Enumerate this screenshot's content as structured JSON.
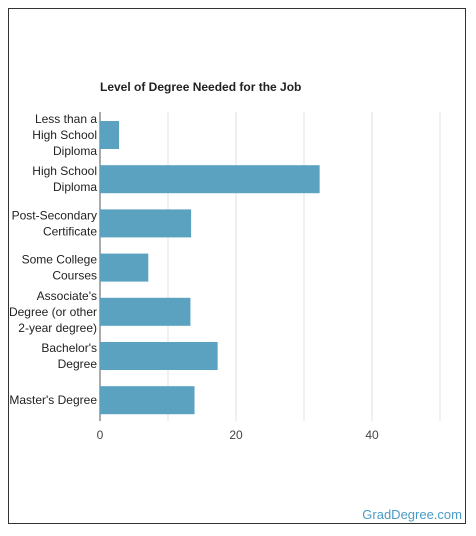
{
  "chart_data": {
    "type": "bar",
    "orientation": "horizontal",
    "title": "Level of Degree Needed for the Job",
    "categories": [
      [
        "Less than a",
        "High School",
        "Diploma"
      ],
      [
        "High School",
        "Diploma"
      ],
      [
        "Post-Secondary",
        "Certificate"
      ],
      [
        "Some College",
        "Courses"
      ],
      [
        "Associate's",
        "Degree (or other",
        "2-year degree)"
      ],
      [
        "Bachelor's",
        "Degree"
      ],
      [
        "Master's Degree"
      ]
    ],
    "values": [
      2.8,
      32.3,
      13.4,
      7.1,
      13.3,
      17.3,
      13.9
    ],
    "xlim": [
      0,
      50
    ],
    "xticks": [
      "0",
      "20",
      "40"
    ],
    "grid": true,
    "bar_color": "#5aa2c0"
  },
  "footer": {
    "brand": "GradDegree.com"
  }
}
